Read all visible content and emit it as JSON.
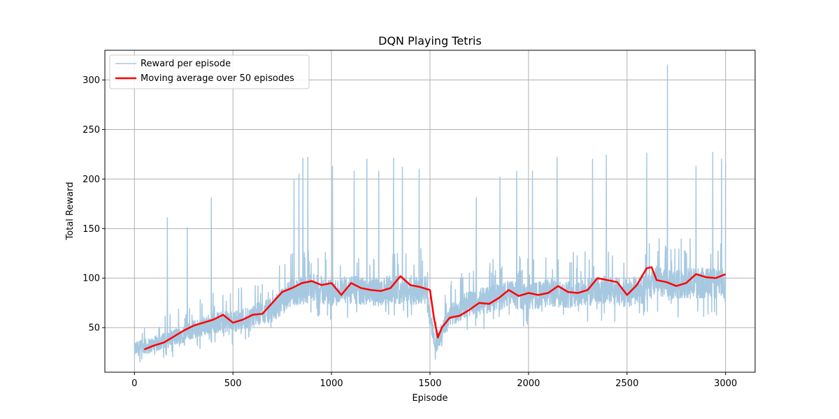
{
  "chart_data": {
    "type": "line",
    "title": "DQN Playing Tetris",
    "xlabel": "Episode",
    "ylabel": "Total Reward",
    "xlim": [
      -150,
      3150
    ],
    "ylim": [
      5,
      330
    ],
    "x_ticks": [
      0,
      500,
      1000,
      1500,
      2000,
      2500,
      3000
    ],
    "y_ticks": [
      50,
      100,
      150,
      200,
      250,
      300
    ],
    "grid": true,
    "legend_position": "top-left",
    "series": [
      {
        "name": "Reward per episode",
        "color": "#a6c8e0",
        "style": "noisy-line",
        "x": [
          0,
          100,
          200,
          300,
          400,
          500,
          600,
          700,
          800,
          900,
          1000,
          1100,
          1200,
          1300,
          1400,
          1480,
          1500,
          1530,
          1560,
          1600,
          1700,
          1800,
          1900,
          2000,
          2100,
          2200,
          2300,
          2400,
          2500,
          2600,
          2650,
          2700,
          2800,
          2900,
          3000
        ],
        "base": [
          28,
          33,
          40,
          48,
          55,
          56,
          62,
          68,
          85,
          90,
          85,
          88,
          85,
          88,
          88,
          88,
          60,
          32,
          45,
          62,
          75,
          78,
          84,
          80,
          85,
          84,
          85,
          88,
          85,
          90,
          97,
          92,
          95,
          95,
          95
        ],
        "spikes": [
          [
            167,
            161
          ],
          [
            268,
            151
          ],
          [
            390,
            181
          ],
          [
            810,
            200
          ],
          [
            835,
            205
          ],
          [
            855,
            221
          ],
          [
            880,
            222
          ],
          [
            1005,
            213
          ],
          [
            1115,
            208
          ],
          [
            1180,
            220
          ],
          [
            1240,
            208
          ],
          [
            1315,
            221
          ],
          [
            1360,
            212
          ],
          [
            1445,
            210
          ],
          [
            1735,
            181
          ],
          [
            1855,
            202
          ],
          [
            1940,
            208
          ],
          [
            2020,
            208
          ],
          [
            2145,
            222
          ],
          [
            2325,
            220
          ],
          [
            2395,
            224
          ],
          [
            2600,
            226
          ],
          [
            2705,
            315
          ],
          [
            2850,
            213
          ],
          [
            2935,
            227
          ],
          [
            2980,
            220
          ],
          [
            3000,
            216
          ]
        ]
      },
      {
        "name": "Moving average over 50 episodes",
        "color": "#ff0000",
        "x": [
          50,
          100,
          150,
          200,
          250,
          300,
          350,
          400,
          450,
          500,
          550,
          600,
          650,
          700,
          750,
          800,
          850,
          900,
          950,
          1000,
          1050,
          1100,
          1150,
          1200,
          1250,
          1300,
          1350,
          1400,
          1450,
          1500,
          1520,
          1540,
          1560,
          1600,
          1650,
          1700,
          1750,
          1800,
          1850,
          1900,
          1950,
          2000,
          2050,
          2100,
          2150,
          2200,
          2250,
          2300,
          2350,
          2400,
          2450,
          2500,
          2550,
          2600,
          2625,
          2650,
          2700,
          2750,
          2800,
          2850,
          2900,
          2950,
          3000
        ],
        "values": [
          28,
          32,
          35,
          41,
          47,
          52,
          55,
          58,
          63,
          55,
          58,
          63,
          64,
          75,
          86,
          90,
          95,
          97,
          93,
          95,
          83,
          95,
          90,
          88,
          87,
          90,
          102,
          93,
          91,
          88,
          60,
          40,
          50,
          60,
          62,
          68,
          75,
          74,
          80,
          88,
          82,
          85,
          83,
          85,
          92,
          86,
          85,
          88,
          100,
          98,
          96,
          83,
          93,
          110,
          111,
          98,
          96,
          92,
          95,
          104,
          101,
          100,
          104
        ]
      }
    ]
  }
}
